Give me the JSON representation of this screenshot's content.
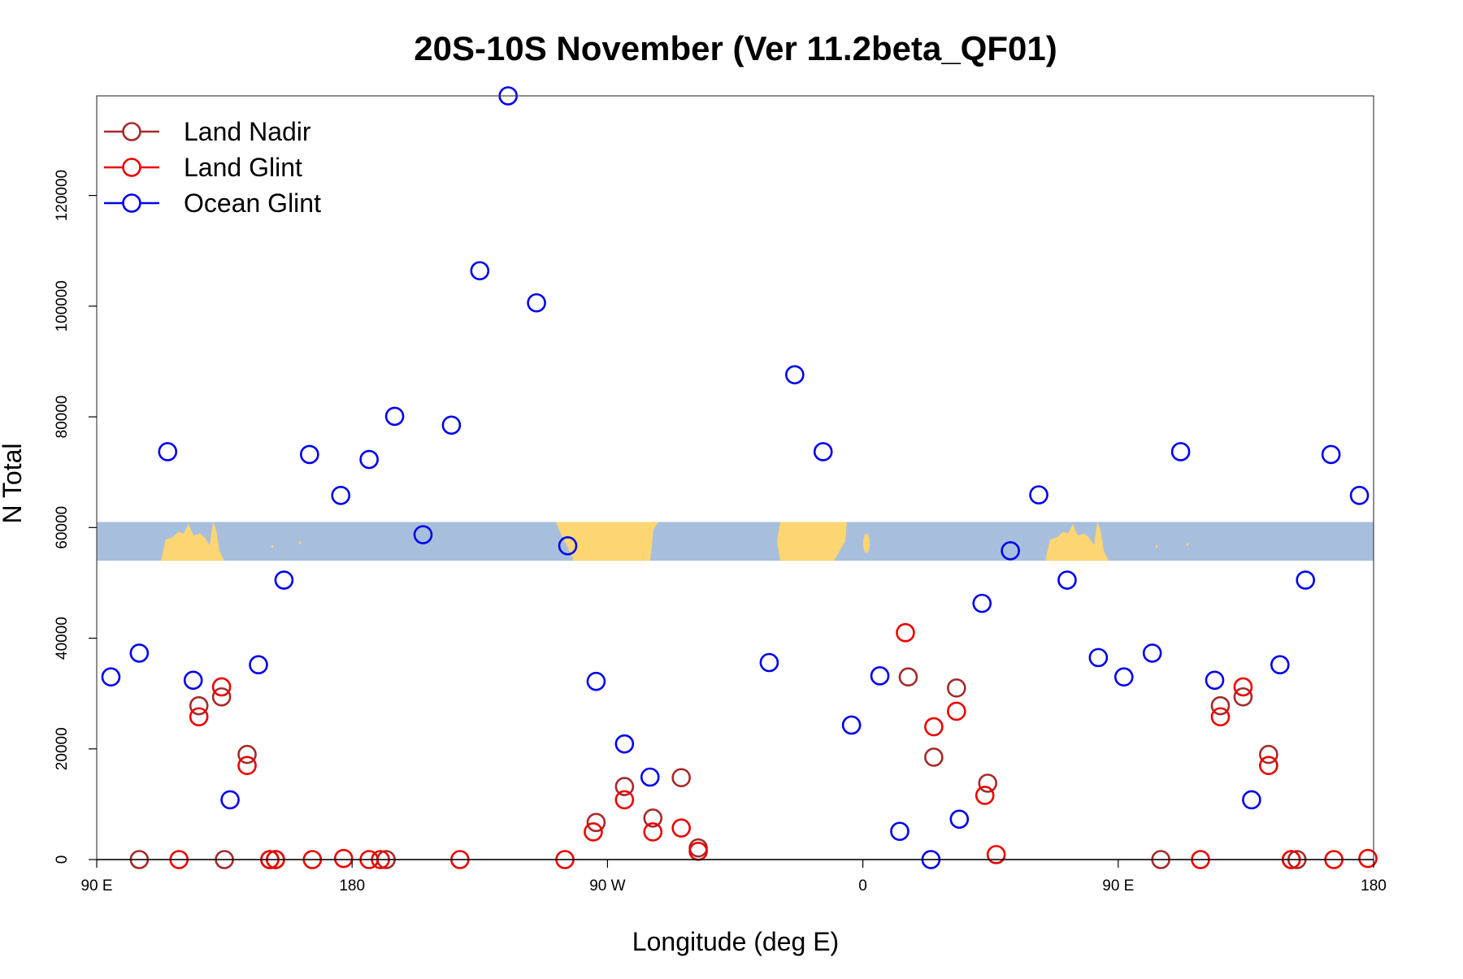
{
  "chart_data": {
    "type": "scatter",
    "title": "20S-10S November (Ver 11.2beta_QF01)",
    "xlabel": "Longitude (deg E)",
    "ylabel": "N Total",
    "x_axis_note": "longitude runs from 90 E through 180 and 0 to 180 E; x values below are unwrapped degrees, 90 to 540",
    "xlim": [
      90,
      540
    ],
    "ylim": [
      0,
      138000
    ],
    "x_ticks": [
      {
        "value": 90,
        "label": "90 E"
      },
      {
        "value": 180,
        "label": "180"
      },
      {
        "value": 270,
        "label": "90 W"
      },
      {
        "value": 360,
        "label": "0"
      },
      {
        "value": 450,
        "label": "90 E"
      },
      {
        "value": 540,
        "label": "180"
      }
    ],
    "y_ticks": [
      {
        "value": 0,
        "label": "0"
      },
      {
        "value": 20000,
        "label": "20000"
      },
      {
        "value": 40000,
        "label": "40000"
      },
      {
        "value": 60000,
        "label": "60000"
      },
      {
        "value": 80000,
        "label": "80000"
      },
      {
        "value": 100000,
        "label": "100000"
      },
      {
        "value": 120000,
        "label": "120000"
      }
    ],
    "legend_position": "top-left",
    "map_strip": {
      "y_range": [
        54000,
        61000
      ],
      "ocean_color": "#a7bfdc",
      "land_color": "#fcd672"
    },
    "series": [
      {
        "name": "Land Nadir",
        "color": "#a52a2a",
        "points": [
          [
            105,
            0
          ],
          [
            126,
            27800
          ],
          [
            134,
            29400
          ],
          [
            143,
            19000
          ],
          [
            151,
            0
          ],
          [
            153,
            0
          ],
          [
            266,
            6700
          ],
          [
            276,
            13200
          ],
          [
            286,
            7500
          ],
          [
            296,
            14800
          ],
          [
            302,
            2100
          ],
          [
            376,
            33000
          ],
          [
            385,
            18500
          ],
          [
            393,
            31000
          ],
          [
            404,
            13800
          ],
          [
            135,
            0
          ],
          [
            192,
            0
          ],
          [
            465,
            0
          ],
          [
            486,
            27800
          ],
          [
            494,
            29400
          ],
          [
            503,
            19000
          ],
          [
            511,
            0
          ],
          [
            513,
            0
          ]
        ]
      },
      {
        "name": "Land Glint",
        "color": "#ee0000",
        "points": [
          [
            119,
            0
          ],
          [
            126,
            25800
          ],
          [
            134,
            31200
          ],
          [
            143,
            17000
          ],
          [
            151,
            0
          ],
          [
            153,
            0
          ],
          [
            166,
            0
          ],
          [
            177,
            200
          ],
          [
            186,
            0
          ],
          [
            190,
            0
          ],
          [
            218,
            0
          ],
          [
            255,
            0
          ],
          [
            265,
            5000
          ],
          [
            276,
            10800
          ],
          [
            286,
            5000
          ],
          [
            296,
            5700
          ],
          [
            302,
            1500
          ],
          [
            375,
            41000
          ],
          [
            385,
            24000
          ],
          [
            393,
            26800
          ],
          [
            403,
            11600
          ],
          [
            407,
            900
          ],
          [
            479,
            0
          ],
          [
            486,
            25800
          ],
          [
            494,
            31200
          ],
          [
            503,
            17000
          ],
          [
            511,
            0
          ],
          [
            526,
            0
          ],
          [
            538,
            200
          ]
        ]
      },
      {
        "name": "Ocean Glint",
        "color": "#0000ee",
        "points": [
          [
            95,
            33000
          ],
          [
            105,
            37300
          ],
          [
            115,
            73700
          ],
          [
            124,
            32400
          ],
          [
            137,
            10800
          ],
          [
            147,
            35200
          ],
          [
            156,
            50500
          ],
          [
            165,
            73200
          ],
          [
            176,
            65800
          ],
          [
            186,
            72300
          ],
          [
            195,
            80100
          ],
          [
            205,
            58700
          ],
          [
            215,
            78500
          ],
          [
            225,
            106400
          ],
          [
            235,
            138000
          ],
          [
            245,
            100600
          ],
          [
            256,
            56700
          ],
          [
            266,
            32200
          ],
          [
            276,
            20900
          ],
          [
            285,
            14900
          ],
          [
            327,
            35600
          ],
          [
            336,
            87600
          ],
          [
            346,
            73700
          ],
          [
            356,
            24300
          ],
          [
            366,
            33200
          ],
          [
            373,
            5100
          ],
          [
            384,
            0
          ],
          [
            394,
            7300
          ],
          [
            402,
            46300
          ],
          [
            412,
            55800
          ],
          [
            422,
            65900
          ],
          [
            432,
            50500
          ],
          [
            443,
            36500
          ],
          [
            452,
            33000
          ],
          [
            462,
            37300
          ],
          [
            472,
            73700
          ],
          [
            484,
            32400
          ],
          [
            497,
            10800
          ],
          [
            507,
            35200
          ],
          [
            516,
            50500
          ],
          [
            525,
            73200
          ],
          [
            535,
            65800
          ]
        ]
      }
    ]
  }
}
